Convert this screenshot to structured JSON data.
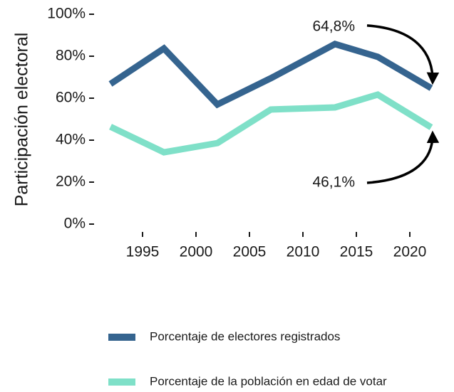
{
  "chart_data": {
    "type": "line",
    "y_label": "Participación electoral",
    "x": [
      1992,
      1997,
      2002,
      2007,
      2013,
      2017,
      2022
    ],
    "series": [
      {
        "name": "Porcentaje de electores registrados",
        "color": "#35648f",
        "values": [
          66.8,
          83.7,
          57,
          69.5,
          85.8,
          79.7,
          64.8
        ]
      },
      {
        "name": "Porcentaje de la población en edad de votar",
        "color": "#7fe0c8",
        "values": [
          46.4,
          34.2,
          38.6,
          54.6,
          55.6,
          61.7,
          46.1
        ]
      }
    ],
    "annotations": [
      "64,8%",
      "46,1%"
    ],
    "xlim": [
      1991,
      2023
    ],
    "xticks": [
      1995,
      2000,
      2005,
      2010,
      2015,
      2020
    ],
    "ylim": [
      0,
      100
    ],
    "yticks": [
      {
        "value": 0,
        "label": "0%"
      },
      {
        "value": 20,
        "label": "20%"
      },
      {
        "value": 40,
        "label": "40%"
      },
      {
        "value": 60,
        "label": "60%"
      },
      {
        "value": 80,
        "label": "80%"
      },
      {
        "value": 100,
        "label": "100%"
      }
    ],
    "grid": false,
    "legend": "bottom"
  }
}
